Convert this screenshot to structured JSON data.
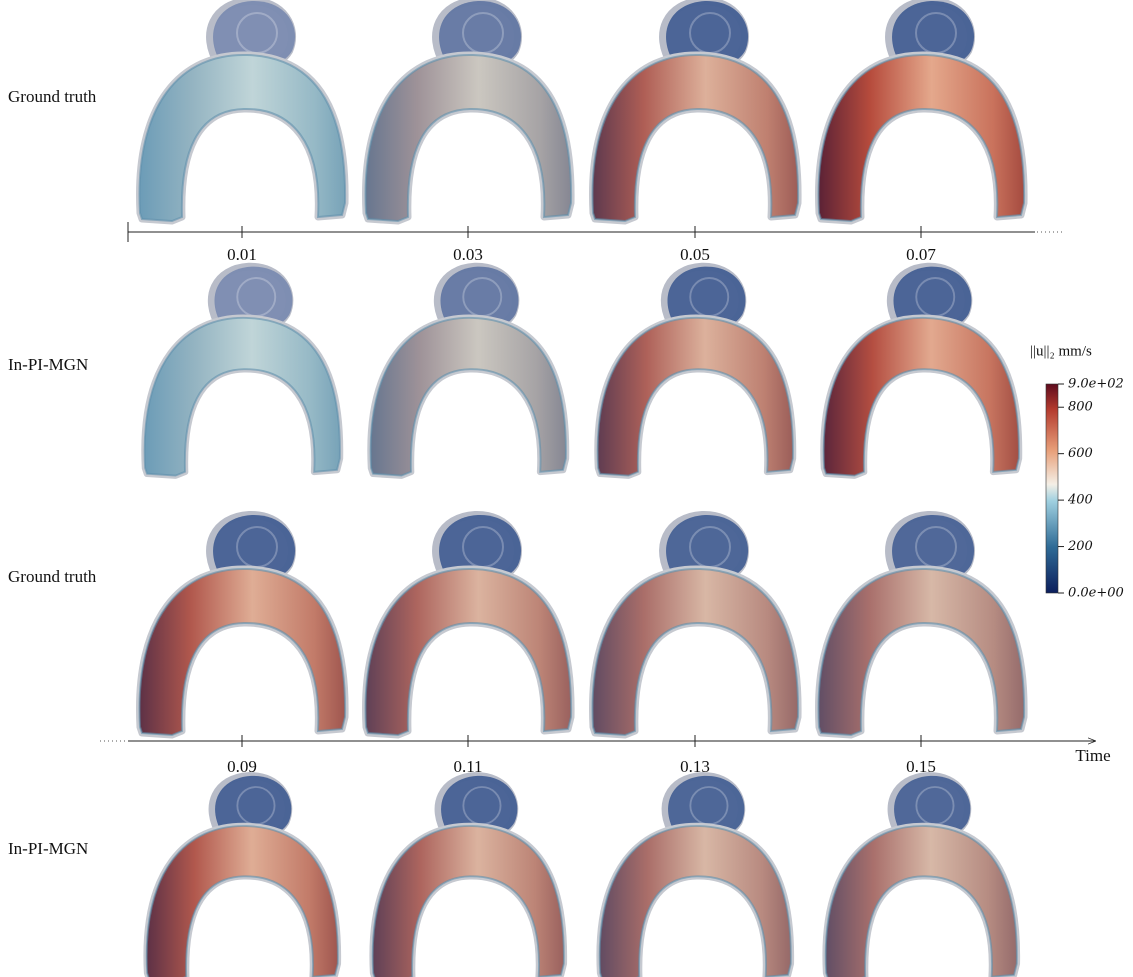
{
  "rows": [
    {
      "label": "Ground truth"
    },
    {
      "label": "In-PI-MGN"
    },
    {
      "label": "Ground truth"
    },
    {
      "label": "In-PI-MGN"
    }
  ],
  "time_axes": [
    {
      "ticks": [
        0.01,
        0.03,
        0.05,
        0.07
      ]
    },
    {
      "ticks": [
        0.09,
        0.11,
        0.13,
        0.15
      ],
      "label": "Time"
    }
  ],
  "colorbar": {
    "title": "||u||₂ mm/s",
    "range": [
      0,
      900
    ],
    "ticks": [
      {
        "value": 0,
        "label": "0.0e+00"
      },
      200,
      400,
      600,
      800,
      {
        "value": 900,
        "label": "9.0e+02"
      }
    ]
  }
}
